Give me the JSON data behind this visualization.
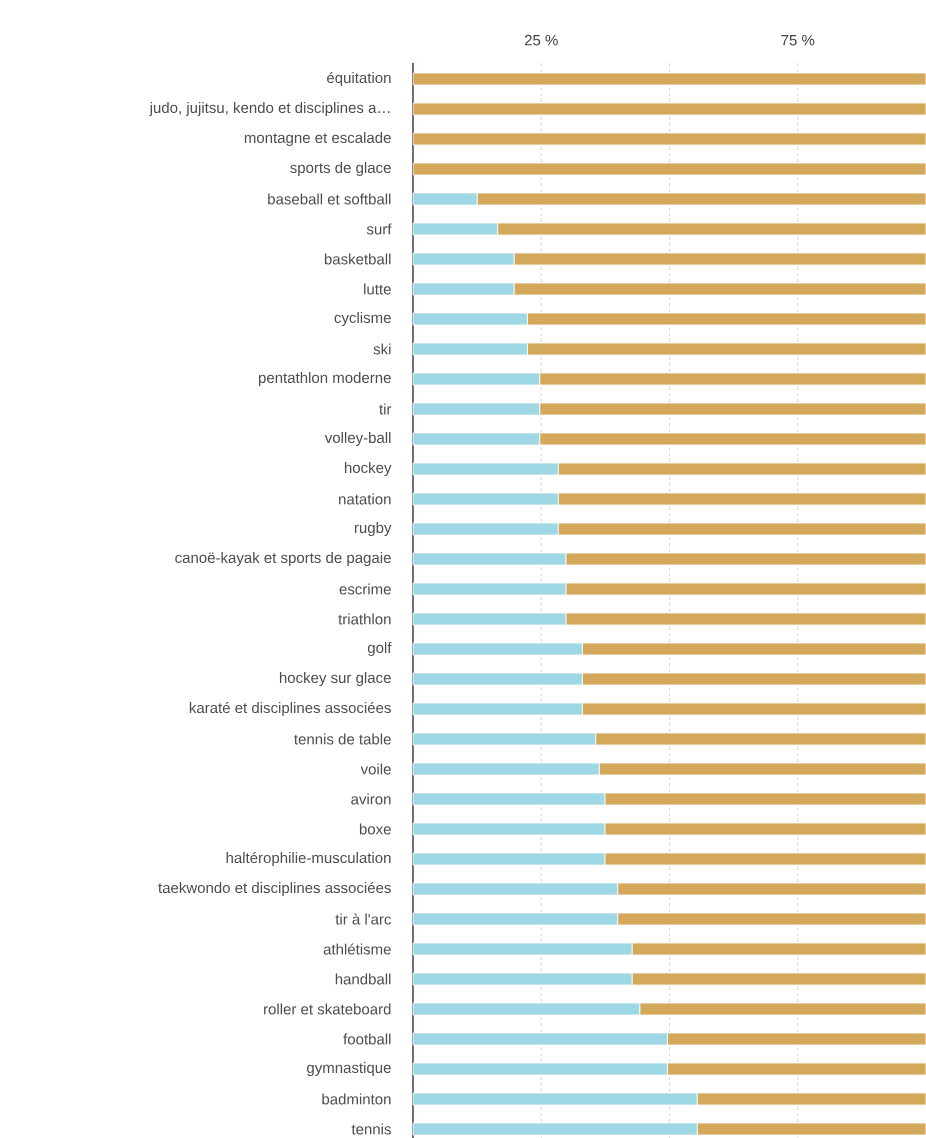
{
  "chart_data": {
    "type": "bar",
    "orientation": "horizontal",
    "stacked": true,
    "grid": "x",
    "categories": [
      "équitation",
      "judo, jujitsu, kendo et disciplines a…",
      "montagne et escalade",
      "sports de glace",
      "baseball et softball",
      "surf",
      "basketball",
      "lutte",
      "cyclisme",
      "ski",
      "pentathlon moderne",
      "tir",
      "volley-ball",
      "hockey",
      "natation",
      "rugby",
      "canoë-kayak et sports de pagaie",
      "escrime",
      "triathlon",
      "golf",
      "hockey sur glace",
      "karaté et disciplines associées",
      "tennis de table",
      "voile",
      "aviron",
      "boxe",
      "haltérophilie-musculation",
      "taekwondo et disciplines associées",
      "tir à l'arc",
      "athlétisme",
      "handball",
      "roller et skateboard",
      "football",
      "gymnastique",
      "badminton",
      "tennis"
    ],
    "series": [
      {
        "color": "#9dd8e4",
        "values": [
          0,
          0,
          0,
          0,
          12.5,
          16.5,
          19.7,
          19.7,
          22.3,
          22.3,
          24.7,
          24.7,
          24.7,
          28.3,
          28.3,
          28.3,
          29.8,
          29.8,
          29.8,
          33,
          33,
          33,
          35.6,
          36.3,
          37.4,
          37.4,
          37.4,
          39.9,
          39.9,
          42.7,
          42.7,
          44.2,
          49.6,
          49.6,
          55.4,
          55.4
        ]
      },
      {
        "color": "#d4a85a",
        "values": [
          100,
          100,
          100,
          100,
          87.5,
          83.5,
          80.3,
          80.3,
          77.7,
          77.7,
          75.3,
          75.3,
          75.3,
          71.7,
          71.7,
          71.7,
          70.2,
          70.2,
          70.2,
          67,
          67,
          67,
          64.4,
          63.7,
          62.6,
          62.6,
          62.6,
          60.1,
          60.1,
          57.3,
          57.3,
          55.8,
          50.4,
          50.4,
          44.6,
          44.6
        ]
      }
    ],
    "xlim": [
      0,
      100
    ],
    "xticks": [
      {
        "value": 25,
        "label": "25 %"
      },
      {
        "value": 50,
        "label": null
      },
      {
        "value": 75,
        "label": "75 %"
      }
    ]
  }
}
